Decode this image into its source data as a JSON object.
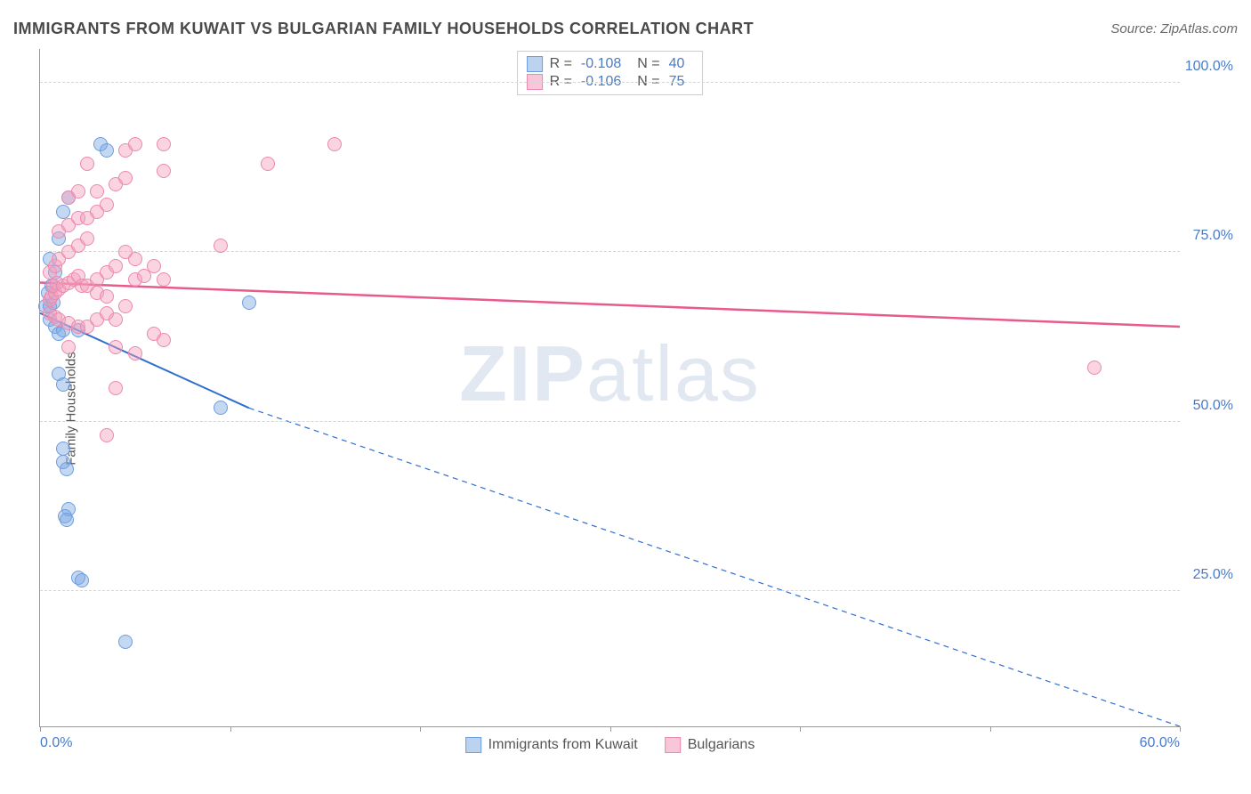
{
  "header": {
    "title": "IMMIGRANTS FROM KUWAIT VS BULGARIAN FAMILY HOUSEHOLDS CORRELATION CHART",
    "source_prefix": "Source: ",
    "source_name": "ZipAtlas.com"
  },
  "watermark": {
    "bold": "ZIP",
    "light": "atlas"
  },
  "chart": {
    "type": "scatter",
    "ylabel": "Family Households",
    "xlim": [
      0,
      60
    ],
    "ylim": [
      5,
      105
    ],
    "xtick_positions": [
      0,
      10,
      20,
      30,
      40,
      50,
      60
    ],
    "xtick_labels_shown": {
      "0": "0.0%",
      "60": "60.0%"
    },
    "ytick_positions": [
      25,
      50,
      75,
      100
    ],
    "ytick_labels": [
      "25.0%",
      "50.0%",
      "75.0%",
      "100.0%"
    ],
    "grid_color": "#d5d5d5",
    "axis_color": "#999999",
    "background_color": "#ffffff",
    "tick_label_color": "#4a7bc8",
    "marker_radius": 8,
    "marker_border_width": 1.5,
    "series": [
      {
        "key": "kuwait",
        "label": "Immigrants from Kuwait",
        "fill": "rgba(125,169,226,0.45)",
        "stroke": "#6d9de0",
        "swatch_fill": "#bcd3ef",
        "swatch_border": "#6d9de0",
        "stats": {
          "R": "-0.108",
          "N": "40"
        },
        "trend": {
          "color": "#2f6fd0",
          "width": 2,
          "solid": {
            "x1": 0,
            "y1": 66,
            "x2": 11,
            "y2": 52
          },
          "dashed": {
            "x1": 11,
            "y1": 52,
            "x2": 60,
            "y2": 5
          }
        },
        "points": [
          [
            0.3,
            67
          ],
          [
            0.5,
            67
          ],
          [
            0.7,
            67.5
          ],
          [
            0.4,
            69
          ],
          [
            0.6,
            70
          ],
          [
            0.8,
            72
          ],
          [
            0.5,
            74
          ],
          [
            1.0,
            77
          ],
          [
            1.2,
            81
          ],
          [
            1.5,
            83
          ],
          [
            3.2,
            91
          ],
          [
            3.5,
            90
          ],
          [
            0.5,
            65
          ],
          [
            0.8,
            64
          ],
          [
            1.0,
            63
          ],
          [
            1.2,
            63.5
          ],
          [
            2.0,
            63.5
          ],
          [
            11.0,
            67.5
          ],
          [
            1.0,
            57
          ],
          [
            1.2,
            55.5
          ],
          [
            9.5,
            52
          ],
          [
            1.2,
            46
          ],
          [
            1.2,
            44
          ],
          [
            1.4,
            43
          ],
          [
            1.5,
            37
          ],
          [
            1.3,
            36
          ],
          [
            1.4,
            35.5
          ],
          [
            2.0,
            27
          ],
          [
            2.2,
            26.5
          ],
          [
            4.5,
            17.5
          ]
        ]
      },
      {
        "key": "bulgarians",
        "label": "Bulgarians",
        "fill": "rgba(244,160,188,0.45)",
        "stroke": "#ec88ae",
        "swatch_fill": "#f7c6d8",
        "swatch_border": "#ec88ae",
        "stats": {
          "R": "-0.106",
          "N": "75"
        },
        "trend": {
          "color": "#e85a8e",
          "width": 2.5,
          "solid": {
            "x1": 0,
            "y1": 70.5,
            "x2": 60,
            "y2": 64
          }
        },
        "points": [
          [
            0.5,
            68
          ],
          [
            0.6,
            68.5
          ],
          [
            0.8,
            69
          ],
          [
            1.0,
            69.5
          ],
          [
            0.7,
            70
          ],
          [
            0.9,
            70.5
          ],
          [
            1.2,
            70
          ],
          [
            1.5,
            70.5
          ],
          [
            1.8,
            71
          ],
          [
            2.0,
            71.5
          ],
          [
            2.2,
            70
          ],
          [
            2.5,
            70
          ],
          [
            3.0,
            71
          ],
          [
            3.5,
            72
          ],
          [
            4.0,
            73
          ],
          [
            3.0,
            69
          ],
          [
            3.5,
            68.5
          ],
          [
            5.0,
            71
          ],
          [
            5.5,
            71.5
          ],
          [
            6.5,
            71
          ],
          [
            6.0,
            73
          ],
          [
            5.0,
            74
          ],
          [
            4.5,
            75
          ],
          [
            0.5,
            72
          ],
          [
            0.8,
            73
          ],
          [
            1.0,
            74
          ],
          [
            1.5,
            75
          ],
          [
            2.0,
            76
          ],
          [
            2.5,
            77
          ],
          [
            1.0,
            78
          ],
          [
            1.5,
            79
          ],
          [
            2.0,
            80
          ],
          [
            2.5,
            80
          ],
          [
            3.0,
            81
          ],
          [
            3.5,
            82
          ],
          [
            1.5,
            83
          ],
          [
            2.0,
            84
          ],
          [
            3.0,
            84
          ],
          [
            4.0,
            85
          ],
          [
            4.5,
            86
          ],
          [
            6.5,
            87
          ],
          [
            2.5,
            88
          ],
          [
            4.5,
            90
          ],
          [
            5.0,
            91
          ],
          [
            6.5,
            91
          ],
          [
            12.0,
            88
          ],
          [
            15.5,
            91
          ],
          [
            9.5,
            76
          ],
          [
            0.5,
            66
          ],
          [
            0.8,
            65.5
          ],
          [
            1.0,
            65
          ],
          [
            1.5,
            64.5
          ],
          [
            2.0,
            64
          ],
          [
            2.5,
            64
          ],
          [
            3.0,
            65
          ],
          [
            3.5,
            66
          ],
          [
            4.0,
            65
          ],
          [
            4.5,
            67
          ],
          [
            1.5,
            61
          ],
          [
            4.0,
            61
          ],
          [
            6.0,
            63
          ],
          [
            6.5,
            62
          ],
          [
            5.0,
            60
          ],
          [
            4.0,
            55
          ],
          [
            3.5,
            48
          ],
          [
            55.5,
            58
          ]
        ]
      }
    ],
    "legend_top": {
      "R_label": "R =",
      "N_label": "N ="
    }
  }
}
